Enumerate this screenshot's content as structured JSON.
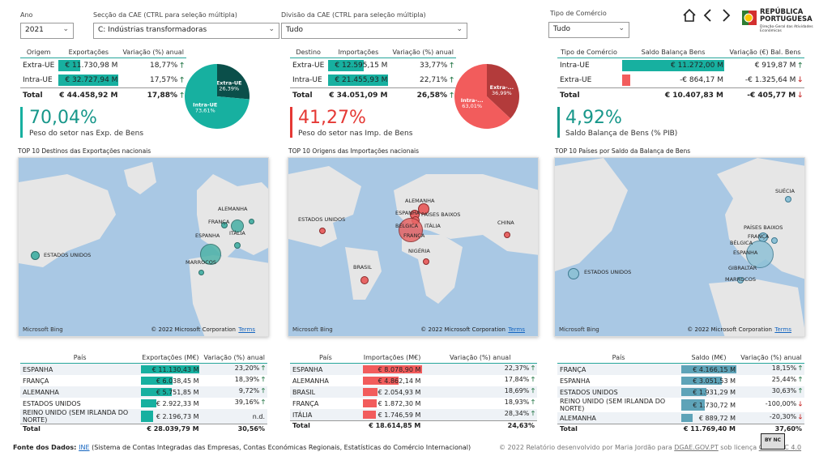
{
  "filters": {
    "ano_label": "Ano",
    "ano_value": "2021",
    "seccao_label": "Secção da CAE (CTRL para seleção múltipla)",
    "seccao_value": "C: Indústrias transformadoras",
    "divisao_label": "Divisão da CAE (CTRL para seleção múltipla)",
    "divisao_value": "Tudo",
    "tipo_label": "Tipo de Comércio",
    "tipo_value": "Tudo"
  },
  "logo": {
    "line1": "REPÚBLICA",
    "line2": "PORTUGUESA",
    "line3": "Direção-Geral das Atividades",
    "line4": "Económicas"
  },
  "exp_summary": {
    "headers": [
      "Origem",
      "Exportações",
      "Variação (%) anual"
    ],
    "rows": [
      {
        "name": "Extra-UE",
        "value": "€ 11.730,98 M",
        "var": "18,77%",
        "bar": 0.36
      },
      {
        "name": "Intra-UE",
        "value": "€ 32.727,94 M",
        "var": "17,57%",
        "bar": 1.0
      }
    ],
    "total": {
      "name": "Total",
      "value": "€ 44.458,92 M",
      "var": "17,88%"
    },
    "pie": [
      {
        "label": "Extra-UE",
        "pct": "26,39%",
        "value": 26.39,
        "color": "#0b4f4a"
      },
      {
        "label": "Intra-UE",
        "pct": "73,61%",
        "value": 73.61,
        "color": "#17b0a0"
      }
    ],
    "kpi": "70,04%",
    "kpi_label": "Peso do setor nas Exp. de Bens"
  },
  "imp_summary": {
    "headers": [
      "Destino",
      "Importações",
      "Variação (%) anual"
    ],
    "rows": [
      {
        "name": "Extra-UE",
        "value": "€ 12.595,15 M",
        "var": "33,77%",
        "bar": 0.59
      },
      {
        "name": "Intra-UE",
        "value": "€ 21.455,93 M",
        "var": "22,71%",
        "bar": 1.0
      }
    ],
    "total": {
      "name": "Total",
      "value": "€ 34.051,09 M",
      "var": "26,58%"
    },
    "pie": [
      {
        "label": "Extra-...",
        "pct": "36,99%",
        "value": 36.99,
        "color": "#b33b3b"
      },
      {
        "label": "Intra-...",
        "pct": "63,01%",
        "value": 63.01,
        "color": "#f25c5c"
      }
    ],
    "kpi": "41,27%",
    "kpi_label": "Peso do setor nas Imp. de Bens"
  },
  "bal_summary": {
    "headers": [
      "Tipo de Comércio",
      "Saldo Balança Bens",
      "Variação (€) Bal. Bens"
    ],
    "rows": [
      {
        "name": "Intra-UE",
        "value": "€ 11.272,00 M",
        "var": "€ 919,87 M",
        "dir": "up",
        "bar": 1.0,
        "color": "#17b0a0"
      },
      {
        "name": "Extra-UE",
        "value": "-€ 864,17 M",
        "var": "-€ 1.325,64 M",
        "dir": "down",
        "bar": 0.08,
        "color": "#f25c5c"
      }
    ],
    "total": {
      "name": "Total",
      "value": "€ 10.407,83 M",
      "var": "-€ 405,77 M",
      "dir": "down"
    },
    "kpi": "4,92%",
    "kpi_label": "Saldo Balança de Bens (% PIB)"
  },
  "maps": {
    "copyright": "© 2022 Microsoft Corporation",
    "terms": "Terms",
    "bing": "Microsoft Bing",
    "exp_title": "TOP 10 Destinos das Exportações nacionais",
    "imp_title": "TOP 10 Origens das Importações nacionais",
    "bal_title": "TOP 10 Países por Saldo da Balança de Bens",
    "exp_labels": [
      "ALEMANHA",
      "FRANÇA",
      "ESPANHA",
      "ITÁLIA",
      "MARROCOS",
      "ESTADOS UNIDOS"
    ],
    "imp_labels": [
      "ALEMANHA",
      "ESPANHA",
      "PAÍSES BAIXOS",
      "ITÁLIA",
      "BÉLGICA",
      "FRANÇA",
      "ESTADOS UNIDOS",
      "CHINA",
      "BRASIL",
      "NIGÉRIA"
    ],
    "bal_labels": [
      "SUÉCIA",
      "PAÍSES BAIXOS",
      "FRANÇA",
      "BÉLGICA",
      "ESPANHA",
      "GIBRALTAR",
      "MARROCOS",
      "ESTADOS UNIDOS"
    ]
  },
  "exp_table": {
    "headers": [
      "País",
      "Exportações (M€)",
      "Variação (%) anual"
    ],
    "rows": [
      {
        "pais": "ESPANHA",
        "value": "€ 11.130,43 M",
        "var": "23,20%",
        "bar": 1.0,
        "dir": "up"
      },
      {
        "pais": "FRANÇA",
        "value": "€ 6.038,45 M",
        "var": "18,39%",
        "bar": 0.54,
        "dir": "up"
      },
      {
        "pais": "ALEMANHA",
        "value": "€ 5.751,85 M",
        "var": "9,72%",
        "bar": 0.52,
        "dir": "up"
      },
      {
        "pais": "ESTADOS UNIDOS",
        "value": "€ 2.922,33 M",
        "var": "39,16%",
        "bar": 0.26,
        "dir": "up"
      },
      {
        "pais": "REINO UNIDO (SEM IRLANDA DO NORTE)",
        "value": "€ 2.196,73 M",
        "var": "n.d.",
        "bar": 0.2,
        "dir": "none"
      }
    ],
    "total": {
      "pais": "Total",
      "value": "€ 28.039,79 M",
      "var": "30,56%"
    }
  },
  "imp_table": {
    "headers": [
      "País",
      "Importações (M€)",
      "Variação (%) anual"
    ],
    "rows": [
      {
        "pais": "ESPANHA",
        "value": "€ 8.078,90 M",
        "var": "22,37%",
        "bar": 1.0,
        "dir": "up"
      },
      {
        "pais": "ALEMANHA",
        "value": "€ 4.862,14 M",
        "var": "17,84%",
        "bar": 0.6,
        "dir": "up"
      },
      {
        "pais": "BRASIL",
        "value": "€ 2.054,93 M",
        "var": "18,69%",
        "bar": 0.25,
        "dir": "up"
      },
      {
        "pais": "FRANÇA",
        "value": "€ 1.872,30 M",
        "var": "18,93%",
        "bar": 0.23,
        "dir": "up"
      },
      {
        "pais": "ITÁLIA",
        "value": "€ 1.746,59 M",
        "var": "28,34%",
        "bar": 0.22,
        "dir": "up"
      }
    ],
    "total": {
      "pais": "Total",
      "value": "€ 18.614,85 M",
      "var": "24,63%"
    }
  },
  "bal_table": {
    "headers": [
      "País",
      "Saldo (M€)",
      "Variação (%) anual"
    ],
    "rows": [
      {
        "pais": "FRANÇA",
        "value": "€ 4.166,15 M",
        "var": "18,15%",
        "bar": 1.0,
        "dir": "up"
      },
      {
        "pais": "ESPANHA",
        "value": "€ 3.051,53 M",
        "var": "25,44%",
        "bar": 0.73,
        "dir": "up"
      },
      {
        "pais": "ESTADOS UNIDOS",
        "value": "€ 1.931,29 M",
        "var": "30,63%",
        "bar": 0.46,
        "dir": "up"
      },
      {
        "pais": "REINO UNIDO (SEM IRLANDA DO NORTE)",
        "value": "€ 1.730,72 M",
        "var": "-100,00%",
        "bar": 0.42,
        "dir": "down"
      },
      {
        "pais": "ALEMANHA",
        "value": "€ 889,72 M",
        "var": "-20,30%",
        "bar": 0.21,
        "dir": "down"
      }
    ],
    "total": {
      "pais": "Total",
      "value": "€ 11.769,40 M",
      "var": "37,60%"
    }
  },
  "footer": {
    "prefix": "Fonte dos Dados: ",
    "ine": "INE",
    "rest": " (Sistema de Contas Integradas das Empresas, Contas Económicas Regionais, Estatísticas do Comércio Internacional)",
    "credit_prefix": "© 2022 Relatório desenvolvido por Maria Jordão para ",
    "credit_link1": "DGAE.GOV.PT",
    "credit_mid": " sob licença ",
    "credit_link2": "CC BY-NC 4.0"
  },
  "cc_badge": "BY NC"
}
